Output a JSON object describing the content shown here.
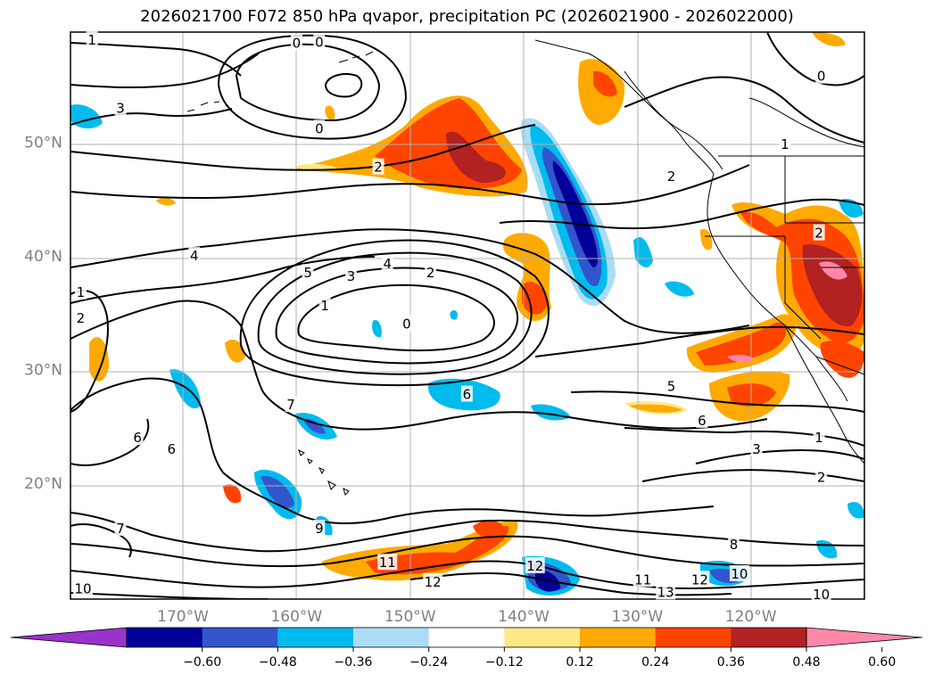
{
  "title": "2026021700 F072 850 hPa qvapor, precipitation PC (2026021900 - 2026022000)",
  "lat_ticks": [
    {
      "label": "50°N",
      "lat": 50
    },
    {
      "label": "40°N",
      "lat": 40
    },
    {
      "label": "30°N",
      "lat": 30
    },
    {
      "label": "20°N",
      "lat": 20
    }
  ],
  "lon_ticks": [
    {
      "label": "170°W",
      "lon": -170
    },
    {
      "label": "160°W",
      "lon": -160
    },
    {
      "label": "150°W",
      "lon": -150
    },
    {
      "label": "140°W",
      "lon": -140
    },
    {
      "label": "130°W",
      "lon": -130
    },
    {
      "label": "120°W",
      "lon": -120
    }
  ],
  "colorbar": {
    "colors": [
      "#9933cc",
      "#000099",
      "#3355cc",
      "#00bbee",
      "#aaddf5",
      "#ffffff",
      "#ffe888",
      "#ffaa00",
      "#ff4400",
      "#b22222",
      "#ff88aa"
    ],
    "tick_labels": [
      "−0.60",
      "−0.48",
      "−0.36",
      "−0.24",
      "−0.12",
      "0.12",
      "0.24",
      "0.36",
      "0.48",
      "0.60"
    ],
    "extend": "both"
  },
  "contour_labels": [
    {
      "text": "1",
      "lon": -178.0,
      "lat": 59.0
    },
    {
      "text": "0",
      "lon": -160.0,
      "lat": 58.7
    },
    {
      "text": "0",
      "lon": -158.0,
      "lat": 58.8
    },
    {
      "text": "3",
      "lon": -175.5,
      "lat": 53.0
    },
    {
      "text": "0",
      "lon": -158.0,
      "lat": 51.2
    },
    {
      "text": "2",
      "lon": -152.8,
      "lat": 47.8
    },
    {
      "text": "4",
      "lon": -169.0,
      "lat": 40.0
    },
    {
      "text": "5",
      "lon": -159.0,
      "lat": 38.5
    },
    {
      "text": "3",
      "lon": -155.2,
      "lat": 38.2
    },
    {
      "text": "4",
      "lon": -152.0,
      "lat": 39.3
    },
    {
      "text": "2",
      "lon": -148.2,
      "lat": 38.5
    },
    {
      "text": "1",
      "lon": -157.5,
      "lat": 35.6
    },
    {
      "text": "0",
      "lon": -150.3,
      "lat": 34.0
    },
    {
      "text": "7",
      "lon": -160.5,
      "lat": 26.9
    },
    {
      "text": "6",
      "lon": -145.0,
      "lat": 27.8
    },
    {
      "text": "6",
      "lon": -174.0,
      "lat": 24.0
    },
    {
      "text": "6",
      "lon": -171.0,
      "lat": 23.0
    },
    {
      "text": "5",
      "lon": -127.0,
      "lat": 28.5
    },
    {
      "text": "6",
      "lon": -124.3,
      "lat": 25.5
    },
    {
      "text": "3",
      "lon": -119.5,
      "lat": 23.0
    },
    {
      "text": "2",
      "lon": -113.8,
      "lat": 20.5
    },
    {
      "text": "1",
      "lon": -114.0,
      "lat": 24.0
    },
    {
      "text": "2",
      "lon": -127.0,
      "lat": 47.0
    },
    {
      "text": "2",
      "lon": -114.0,
      "lat": 42.0
    },
    {
      "text": "1",
      "lon": -117.0,
      "lat": 49.8
    },
    {
      "text": "0",
      "lon": -113.8,
      "lat": 55.8
    },
    {
      "text": "7",
      "lon": -175.5,
      "lat": 16.0
    },
    {
      "text": "9",
      "lon": -158.0,
      "lat": 16.0
    },
    {
      "text": "11",
      "lon": -152.0,
      "lat": 13.0
    },
    {
      "text": "12",
      "lon": -148.0,
      "lat": 11.3
    },
    {
      "text": "12",
      "lon": -139.0,
      "lat": 12.7
    },
    {
      "text": "11",
      "lon": -129.5,
      "lat": 11.5
    },
    {
      "text": "13",
      "lon": -127.5,
      "lat": 10.4
    },
    {
      "text": "12",
      "lon": -124.5,
      "lat": 11.5
    },
    {
      "text": "10",
      "lon": -121.0,
      "lat": 12.0
    },
    {
      "text": "8",
      "lon": -121.5,
      "lat": 14.6
    },
    {
      "text": "10",
      "lon": -113.8,
      "lat": 10.2
    },
    {
      "text": "10",
      "lon": -178.8,
      "lat": 10.7
    },
    {
      "text": "1",
      "lon": -179.0,
      "lat": 36.8
    },
    {
      "text": "2",
      "lon": -179.0,
      "lat": 34.5
    }
  ]
}
